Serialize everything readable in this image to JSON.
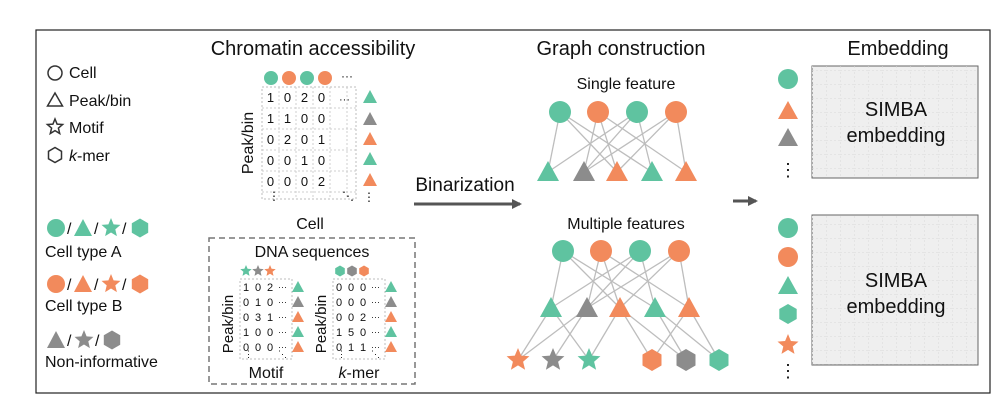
{
  "legend": {
    "cell": "Cell",
    "peak_bin": "Peak/bin",
    "motif": "Motif",
    "kmer_k": "k",
    "kmer_rest": "-mer",
    "cell_type_a": "Cell type A",
    "cell_type_b": "Cell type B",
    "non_informative": "Non-informative",
    "separator": "/"
  },
  "sections": {
    "chromatin_accessibility": "Chromatin accessibility",
    "graph_construction": "Graph construction",
    "embedding": "Embedding"
  },
  "matrix": {
    "row_axis_label": "Peak/bin",
    "col_axis_label": "Cell",
    "rows": [
      [
        "1",
        "0",
        "2",
        "0"
      ],
      [
        "1",
        "1",
        "0",
        "0"
      ],
      [
        "0",
        "2",
        "0",
        "1"
      ],
      [
        "0",
        "0",
        "1",
        "0"
      ],
      [
        "0",
        "0",
        "0",
        "2"
      ]
    ],
    "ellipsis_h": "···",
    "ellipsis_v": "⋮",
    "ellipsis_d": "⋱"
  },
  "dna": {
    "title": "DNA sequences",
    "motif_label": "Motif",
    "kmer_k": "k",
    "kmer_rest": "-mer",
    "row_axis_label": "Peak/bin",
    "motif_rows": [
      [
        "1",
        "0",
        "2"
      ],
      [
        "0",
        "1",
        "0"
      ],
      [
        "0",
        "3",
        "1"
      ],
      [
        "1",
        "0",
        "0"
      ],
      [
        "0",
        "0",
        "0"
      ]
    ],
    "kmer_rows": [
      [
        "0",
        "0",
        "0"
      ],
      [
        "0",
        "0",
        "0"
      ],
      [
        "0",
        "0",
        "2"
      ],
      [
        "1",
        "5",
        "0"
      ],
      [
        "0",
        "1",
        "1"
      ]
    ]
  },
  "binarization": "Binarization",
  "graph": {
    "single_feature": "Single feature",
    "multiple_features": "Multiple features"
  },
  "embedding_box": {
    "line1": "SIMBA",
    "line2": "embedding"
  },
  "colors": {
    "green": "#5fc3a0",
    "orange": "#f28a5c",
    "gray": "#8c8c8c",
    "arrow": "#555555",
    "edge": "#bdbdbd",
    "box_fill": "#efefef"
  }
}
